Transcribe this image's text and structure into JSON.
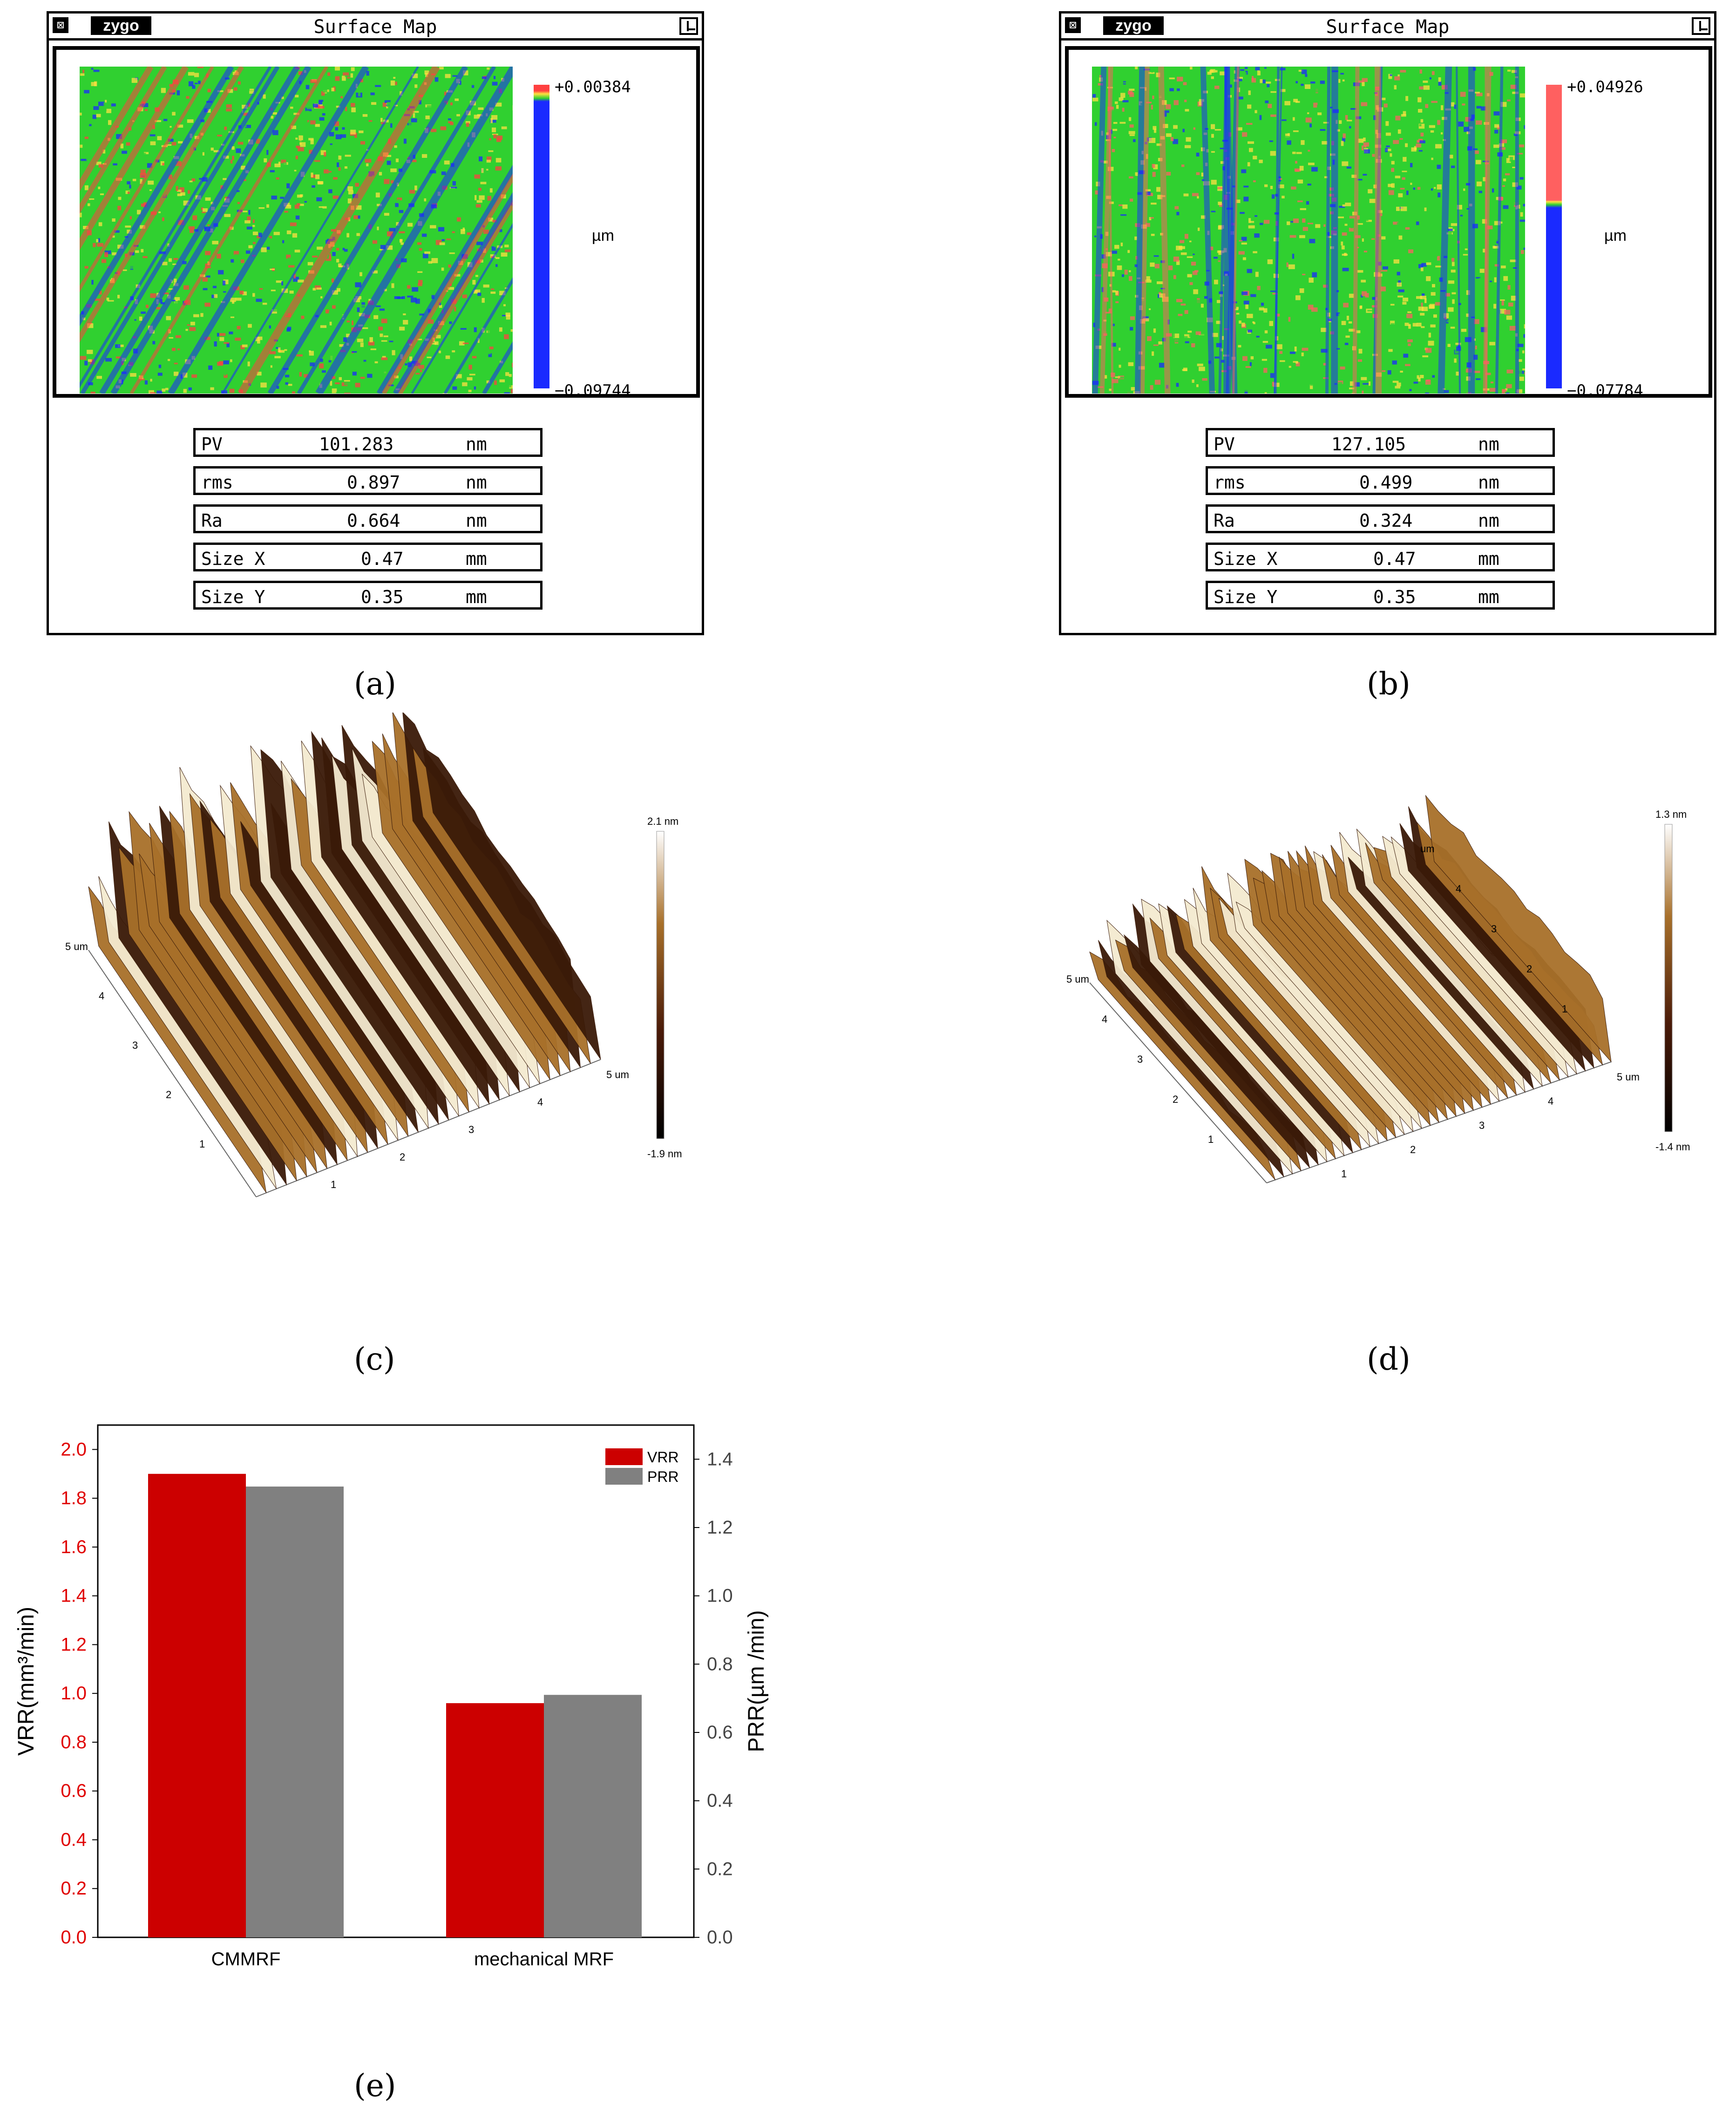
{
  "panels": [
    {
      "title": "Surface Map",
      "logo": "zygo",
      "close_icon": "close-icon",
      "restore_icon": "restore-icon",
      "scale_max": "+0.00384",
      "scale_min": "−0.09744",
      "scale_unit": "µm",
      "stats": [
        {
          "label": "PV",
          "value": "101.283",
          "unit": "nm"
        },
        {
          "label": "rms",
          "value": "0.897",
          "unit": "nm"
        },
        {
          "label": "Ra",
          "value": "0.664",
          "unit": "nm"
        },
        {
          "label": "Size X",
          "value": "0.47",
          "unit": "mm"
        },
        {
          "label": "Size Y",
          "value": "0.35",
          "unit": "mm"
        }
      ],
      "colors": {
        "high": "#ff4040",
        "mid": "#30d030",
        "low": "#1a2aff",
        "warm": "#ffe040"
      }
    },
    {
      "title": "Surface Map",
      "logo": "zygo",
      "close_icon": "close-icon",
      "restore_icon": "restore-icon",
      "scale_max": "+0.04926",
      "scale_min": "−0.07784",
      "scale_unit": "µm",
      "stats": [
        {
          "label": "PV",
          "value": "127.105",
          "unit": "nm"
        },
        {
          "label": "rms",
          "value": "0.499",
          "unit": "nm"
        },
        {
          "label": "Ra",
          "value": "0.324",
          "unit": "nm"
        },
        {
          "label": "Size X",
          "value": "0.47",
          "unit": "mm"
        },
        {
          "label": "Size Y",
          "value": "0.35",
          "unit": "mm"
        }
      ],
      "colors": {
        "high": "#ff6060",
        "mid": "#30d030",
        "low": "#1a2aff",
        "warm": "#ffe040"
      }
    }
  ],
  "afm": [
    {
      "zmax": "2.1 nm",
      "zmin": "-1.9 nm",
      "x_ticks": [
        "1",
        "2",
        "3",
        "4",
        "5 um"
      ],
      "y_ticks": [
        "1",
        "2",
        "3",
        "4",
        "5 um"
      ],
      "colors": {
        "light": "#f4ead0",
        "mid": "#a8702a",
        "dark": "#3a1a08"
      }
    },
    {
      "zmax": "1.3 nm",
      "zmin": "-1.4 nm",
      "x_ticks": [
        "1",
        "2",
        "3",
        "4",
        "5 um"
      ],
      "y_ticks": [
        "1",
        "2",
        "3",
        "4",
        "5 um"
      ],
      "z_ticks": [
        "1",
        "2",
        "3",
        "4",
        "um"
      ],
      "colors": {
        "light": "#f4ead0",
        "mid": "#a8702a",
        "dark": "#3a1a08"
      }
    }
  ],
  "captions": {
    "a": "(a)",
    "b": "(b)",
    "c": "(c)",
    "d": "(d)",
    "e": "(e)"
  },
  "chart_data": {
    "type": "bar",
    "categories": [
      "CMMRF",
      "mechanical MRF"
    ],
    "series": [
      {
        "name": "VRR",
        "axis": "left",
        "color": "#cc0000",
        "values": [
          1.9,
          0.96
        ]
      },
      {
        "name": "PRR",
        "axis": "right",
        "color": "#808080",
        "values": [
          1.32,
          0.71
        ]
      }
    ],
    "ylabel": "VRR(mm³/min)",
    "ylabel_right": "PRR(µm /min)",
    "ylim": [
      0,
      2.1
    ],
    "ylim_right": [
      0,
      1.5
    ],
    "yticks": [
      "0.0",
      "0.2",
      "0.4",
      "0.6",
      "0.8",
      "1.0",
      "1.2",
      "1.4",
      "1.6",
      "1.8",
      "2.0"
    ],
    "yticks_right": [
      "0.0",
      "0.2",
      "0.4",
      "0.6",
      "0.8",
      "1.0",
      "1.2",
      "1.4"
    ],
    "left_axis_color": "#e00000",
    "right_axis_color": "#444444",
    "legend": "top-right"
  }
}
